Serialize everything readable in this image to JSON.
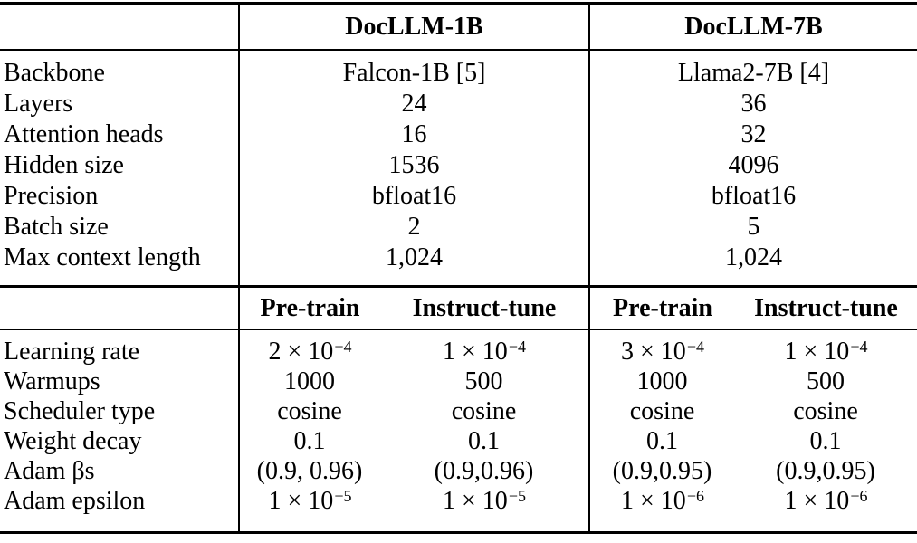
{
  "table": {
    "colors": {
      "background": "#ffffff",
      "text": "#000000",
      "rule": "#000000"
    },
    "top": {
      "col_headers": [
        "DocLLM-1B",
        "DocLLM-7B"
      ],
      "rows": [
        {
          "label": "Backbone",
          "value_1b": "Falcon-1B [5]",
          "value_7b": "Llama2-7B [4]"
        },
        {
          "label": "Layers",
          "value_1b": "24",
          "value_7b": "36"
        },
        {
          "label": "Attention heads",
          "value_1b": "16",
          "value_7b": "32"
        },
        {
          "label": "Hidden size",
          "value_1b": "1536",
          "value_7b": "4096"
        },
        {
          "label": "Precision",
          "value_1b": "bfloat16",
          "value_7b": "bfloat16"
        },
        {
          "label": "Batch size",
          "value_1b": "2",
          "value_7b": "5"
        },
        {
          "label": "Max context length",
          "value_1b": "1,024",
          "value_7b": "1,024"
        }
      ]
    },
    "bottom": {
      "col_headers": [
        "Pre-train",
        "Instruct-tune",
        "Pre-train",
        "Instruct-tune"
      ],
      "rows": [
        {
          "label": "Learning rate",
          "cells": [
            {
              "base": "2 × 10",
              "exp": "−4"
            },
            {
              "base": "1 × 10",
              "exp": "−4"
            },
            {
              "base": "3 × 10",
              "exp": "−4"
            },
            {
              "base": "1 × 10",
              "exp": "−4"
            }
          ]
        },
        {
          "label": "Warmups",
          "cells": [
            {
              "base": "1000"
            },
            {
              "base": "500"
            },
            {
              "base": "1000"
            },
            {
              "base": "500"
            }
          ]
        },
        {
          "label": "Scheduler type",
          "cells": [
            {
              "base": "cosine"
            },
            {
              "base": "cosine"
            },
            {
              "base": "cosine"
            },
            {
              "base": "cosine"
            }
          ]
        },
        {
          "label": "Weight decay",
          "cells": [
            {
              "base": "0.1"
            },
            {
              "base": "0.1"
            },
            {
              "base": "0.1"
            },
            {
              "base": "0.1"
            }
          ]
        },
        {
          "label": "Adam βs",
          "cells": [
            {
              "base": "(0.9, 0.96)"
            },
            {
              "base": "(0.9,0.96)"
            },
            {
              "base": "(0.9,0.95)"
            },
            {
              "base": "(0.9,0.95)"
            }
          ]
        },
        {
          "label": "Adam epsilon",
          "cells": [
            {
              "base": "1 × 10",
              "exp": "−5"
            },
            {
              "base": "1 × 10",
              "exp": "−5"
            },
            {
              "base": "1 × 10",
              "exp": "−6"
            },
            {
              "base": "1 × 10",
              "exp": "−6"
            }
          ]
        }
      ]
    }
  }
}
